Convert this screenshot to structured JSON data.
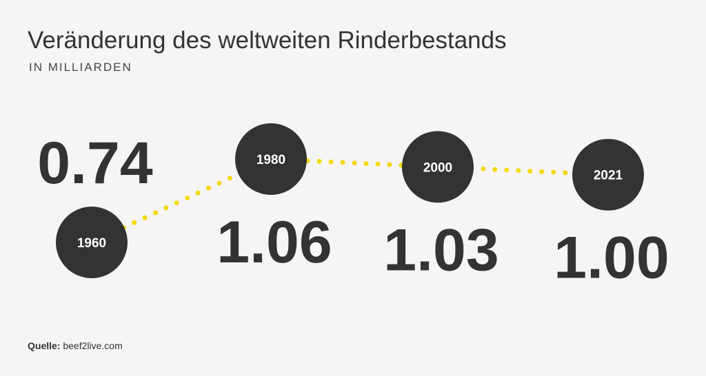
{
  "chart_data": {
    "type": "line",
    "title": "Veränderung des weltweiten Rinderbestands",
    "subtitle": "IN MILLIARDEN",
    "categories": [
      "1960",
      "1980",
      "2000",
      "2021"
    ],
    "values": [
      0.74,
      1.06,
      1.03,
      1.0
    ],
    "value_labels": [
      "0.74",
      "1.06",
      "1.03",
      "1.00"
    ],
    "line_color": "#f5d90a",
    "marker_color": "#333333",
    "source": {
      "label": "Quelle:",
      "text": "beef2live.com"
    }
  }
}
